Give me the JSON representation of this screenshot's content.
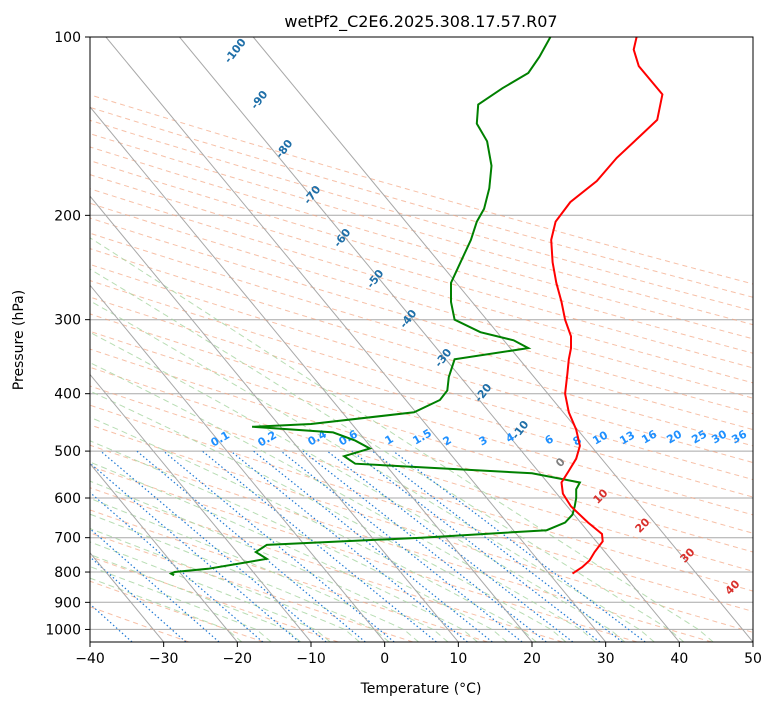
{
  "chart_data": {
    "type": "line",
    "chart_kind": "skew-t log-p diagram",
    "title": "wetPf2_C2E6.2025.308.17.57.R07",
    "xlabel": "Temperature (°C)",
    "ylabel": "Pressure (hPa)",
    "xlim": [
      -40,
      50
    ],
    "ylim": [
      1050,
      100
    ],
    "y_scale": "log",
    "grid": true,
    "x_ticks": [
      -40,
      -30,
      -20,
      -10,
      0,
      10,
      20,
      30,
      40,
      50
    ],
    "x_tick_labels": [
      "−40",
      "−30",
      "−20",
      "−10",
      "0",
      "10",
      "20",
      "30",
      "40",
      "50"
    ],
    "y_ticks": [
      100,
      200,
      300,
      400,
      500,
      600,
      700,
      800,
      900,
      1000
    ],
    "y_tick_labels": [
      "100",
      "200",
      "300",
      "400",
      "500",
      "600",
      "700",
      "800",
      "900",
      "1000"
    ],
    "series": [
      {
        "kind": "temperature",
        "color": "#ff0000",
        "points": [
          [
            805,
            25.5
          ],
          [
            785,
            26.8
          ],
          [
            765,
            27.8
          ],
          [
            740,
            28.5
          ],
          [
            710,
            29.6
          ],
          [
            690,
            29.5
          ],
          [
            660,
            27.6
          ],
          [
            620,
            25.3
          ],
          [
            590,
            24.2
          ],
          [
            565,
            24.0
          ],
          [
            540,
            25.0
          ],
          [
            515,
            26.0
          ],
          [
            490,
            26.5
          ],
          [
            460,
            26.0
          ],
          [
            430,
            25.0
          ],
          [
            400,
            24.5
          ],
          [
            370,
            24.8
          ],
          [
            350,
            25.0
          ],
          [
            335,
            25.3
          ],
          [
            320,
            25.3
          ],
          [
            300,
            24.5
          ],
          [
            280,
            24.0
          ],
          [
            260,
            23.3
          ],
          [
            240,
            22.8
          ],
          [
            220,
            22.6
          ],
          [
            205,
            23.2
          ],
          [
            190,
            25.2
          ],
          [
            175,
            28.8
          ],
          [
            160,
            31.5
          ],
          [
            148,
            34.4
          ],
          [
            138,
            37.0
          ],
          [
            125,
            37.7
          ],
          [
            112,
            34.5
          ],
          [
            105,
            33.8
          ],
          [
            100,
            34.2
          ]
        ]
      },
      {
        "kind": "dewpoint",
        "color": "#008000",
        "points": [
          [
            810,
            -28.6
          ],
          [
            805,
            -29.0
          ],
          [
            800,
            -28.5
          ],
          [
            790,
            -24.0
          ],
          [
            775,
            -20.0
          ],
          [
            760,
            -16.0
          ],
          [
            740,
            -17.5
          ],
          [
            720,
            -16.0
          ],
          [
            700,
            5.0
          ],
          [
            680,
            22.0
          ],
          [
            660,
            24.5
          ],
          [
            640,
            25.5
          ],
          [
            620,
            25.8
          ],
          [
            600,
            26.0
          ],
          [
            580,
            26.0
          ],
          [
            565,
            26.5
          ],
          [
            545,
            20.0
          ],
          [
            525,
            -4.0
          ],
          [
            510,
            -5.5
          ],
          [
            495,
            -2.0
          ],
          [
            480,
            -4.0
          ],
          [
            465,
            -7.0
          ],
          [
            455,
            -18.0
          ],
          [
            450,
            -10.0
          ],
          [
            430,
            4.0
          ],
          [
            410,
            7.5
          ],
          [
            395,
            8.5
          ],
          [
            375,
            8.7
          ],
          [
            350,
            9.5
          ],
          [
            335,
            19.5
          ],
          [
            325,
            17.5
          ],
          [
            315,
            13.0
          ],
          [
            300,
            9.5
          ],
          [
            280,
            9.0
          ],
          [
            260,
            9.0
          ],
          [
            240,
            10.3
          ],
          [
            220,
            11.7
          ],
          [
            205,
            12.5
          ],
          [
            195,
            13.5
          ],
          [
            180,
            14.2
          ],
          [
            165,
            14.5
          ],
          [
            150,
            13.9
          ],
          [
            140,
            12.5
          ],
          [
            130,
            12.7
          ],
          [
            122,
            16.0
          ],
          [
            115,
            19.5
          ],
          [
            108,
            21.0
          ],
          [
            100,
            22.5
          ]
        ]
      }
    ],
    "mixing_ratio_labels": [
      "0.1",
      "0.2",
      "0.4",
      "0.6",
      "1",
      "1.5",
      "2",
      "3",
      "4",
      "6",
      "8",
      "10",
      "13",
      "16",
      "20",
      "25",
      "30",
      "36"
    ],
    "dry_adiabat_labels": [
      "-100",
      "-90",
      "-80",
      "-70",
      "-60",
      "-50",
      "-40",
      "-30",
      "-20",
      "-10"
    ],
    "moist_adiabat_labels": [
      "0",
      "10",
      "20",
      "30",
      "40"
    ],
    "colors": {
      "temperature": "#ff0000",
      "dewpoint": "#008000",
      "isotherm": "#a8a8a8",
      "dry_adiabat": "#f4a582",
      "moist_adiabat": "#a6d5a0",
      "mixing_ratio": "#1f78d4",
      "mixing_label": "#1f90ff",
      "dry_label": "#1f6fa8",
      "moist_label": "#d9302c"
    }
  }
}
